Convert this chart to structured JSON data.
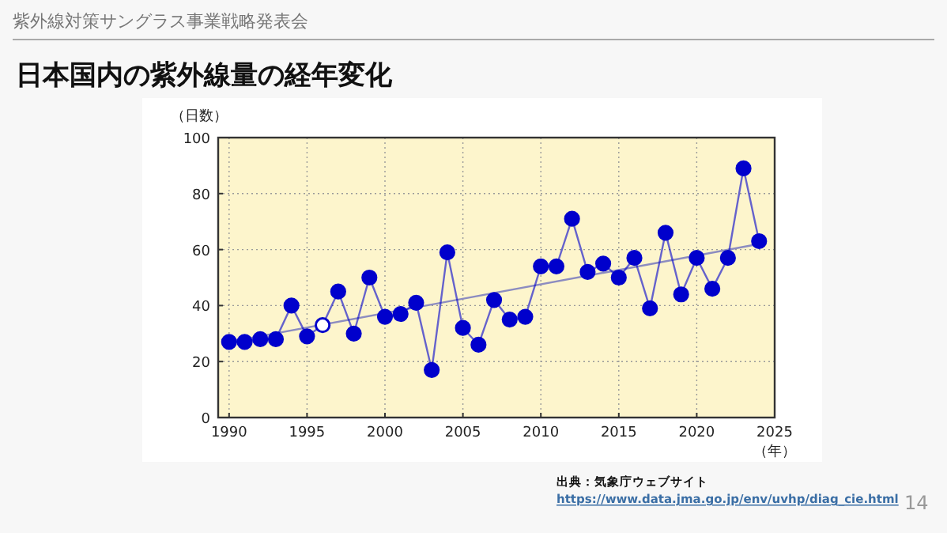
{
  "chart_data": {
    "type": "line",
    "title": "日本国内の紫外線量の経年変化",
    "xlabel": "（年）",
    "ylabel": "（日数）",
    "annotations": [
      "紫外線対策サングラス事業戦略発表会",
      "出典：気象庁ウェブサイト",
      "https://www.data.jma.go.jp/env/uvhp/diag_cie.html",
      "14"
    ],
    "x": [
      1990,
      1991,
      1992,
      1993,
      1994,
      1995,
      1996,
      1997,
      1998,
      1999,
      2000,
      2001,
      2002,
      2003,
      2004,
      2005,
      2006,
      2007,
      2008,
      2009,
      2010,
      2011,
      2012,
      2013,
      2014,
      2015,
      2016,
      2017,
      2018,
      2019,
      2020,
      2021,
      2022,
      2023,
      2024
    ],
    "series": [
      {
        "color": "#0000cc",
        "marker": "circle",
        "values": [
          27,
          27,
          28,
          28,
          40,
          29,
          33,
          45,
          30,
          50,
          36,
          37,
          41,
          17,
          59,
          32,
          26,
          42,
          35,
          36,
          54,
          54,
          71,
          52,
          55,
          50,
          57,
          39,
          66,
          44,
          57,
          46,
          57,
          89,
          63
        ],
        "colors": [
          "#0000cc",
          "#0000cc",
          "#0000cc",
          "#0000cc",
          "#0000cc",
          "#0000cc",
          "#ffffff",
          "#0000cc",
          "#0000cc",
          "#0000cc",
          "#0000cc",
          "#0000cc",
          "#0000cc",
          "#0000cc",
          "#0000cc",
          "#0000cc",
          "#0000cc",
          "#0000cc",
          "#0000cc",
          "#0000cc",
          "#0000cc",
          "#0000cc",
          "#0000cc",
          "#0000cc",
          "#0000cc",
          "#0000cc",
          "#0000cc",
          "#0000cc",
          "#0000cc",
          "#0000cc",
          "#0000cc",
          "#0000cc",
          "#0000cc",
          "#0000cc",
          "#0000cc"
        ]
      },
      {
        "color": "#8c8cc0",
        "marker": "none",
        "x": [
          1990,
          2024
        ],
        "values": [
          27,
          62
        ]
      }
    ],
    "xlim": [
      1989.3,
      2025
    ],
    "xticks": [
      1990,
      1995,
      2000,
      2005,
      2010,
      2015,
      2020,
      2025
    ],
    "ylim": [
      0,
      100
    ],
    "yticks": [
      0,
      20,
      40,
      60,
      80,
      100
    ],
    "grid": true,
    "line_style": "solid"
  }
}
